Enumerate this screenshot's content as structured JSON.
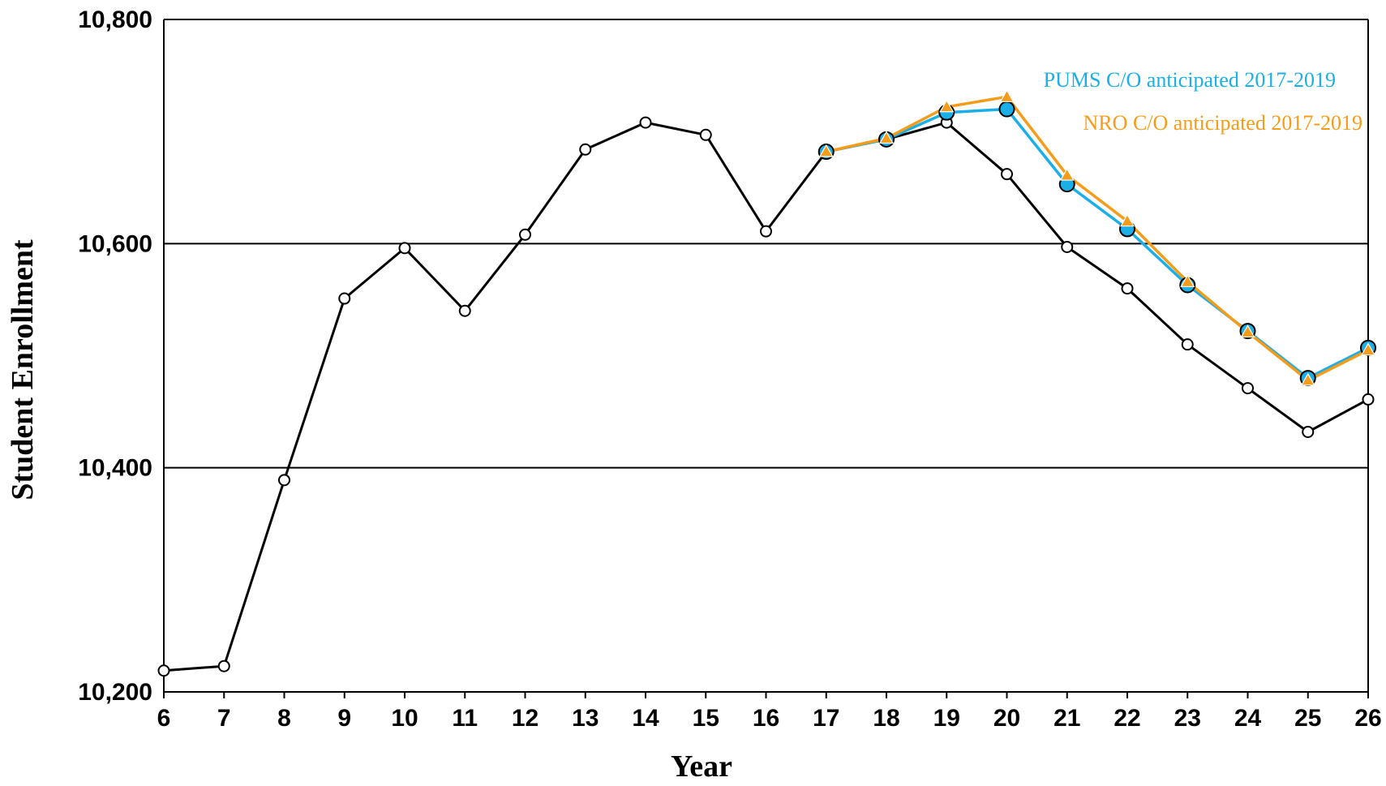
{
  "chart_data": {
    "type": "line",
    "xlabel": "Year",
    "ylabel": "Student Enrollment",
    "xlim": [
      6,
      26
    ],
    "ylim": [
      10200,
      10800
    ],
    "x_ticks": [
      6,
      7,
      8,
      9,
      10,
      11,
      12,
      13,
      14,
      15,
      16,
      17,
      18,
      19,
      20,
      21,
      22,
      23,
      24,
      25,
      26
    ],
    "y_ticks": [
      10200,
      10400,
      10600,
      10800
    ],
    "y_tick_labels": [
      "10,200",
      "10,400",
      "10,600",
      "10,800"
    ],
    "grid": "horizontal",
    "legend": "inline labels near top-right",
    "series": [
      {
        "color": "#000000",
        "marker": "open-circle",
        "x": [
          6,
          7,
          8,
          9,
          10,
          11,
          12,
          13,
          14,
          15,
          16,
          17,
          18,
          19,
          20,
          21,
          22,
          23,
          24,
          25,
          26
        ],
        "values": [
          10219,
          10223,
          10389,
          10551,
          10596,
          10540,
          10608,
          10684,
          10708,
          10697,
          10611,
          10682,
          10693,
          10708,
          10662,
          10597,
          10560,
          10510,
          10471,
          10432,
          10461
        ]
      },
      {
        "name": "PUMS C/O anticipated 2017-2019",
        "color": "#1aafe6",
        "marker": "filled-circle",
        "x": [
          17,
          18,
          19,
          20,
          21,
          22,
          23,
          24,
          25,
          26
        ],
        "values": [
          10682,
          10693,
          10717,
          10720,
          10653,
          10613,
          10563,
          10522,
          10480,
          10507
        ]
      },
      {
        "name": "NRO C/O anticipated 2017-2019",
        "color": "#f59c1a",
        "marker": "triangle",
        "x": [
          17,
          18,
          19,
          20,
          21,
          22,
          23,
          24,
          25,
          26
        ],
        "values": [
          10682,
          10694,
          10722,
          10731,
          10661,
          10620,
          10566,
          10521,
          10478,
          10505
        ]
      }
    ]
  }
}
